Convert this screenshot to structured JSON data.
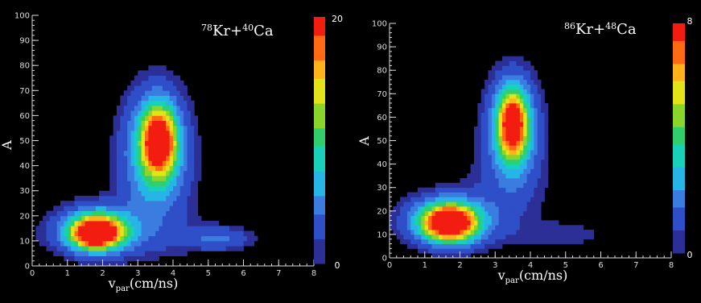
{
  "colors": {
    "background": "#000000",
    "axis": "#dcdcdc",
    "text": "#ffffff",
    "colormap": [
      "#2b2f96",
      "#2f4fc8",
      "#3a7ce0",
      "#27b4e6",
      "#19d1b9",
      "#2fcf6b",
      "#8ad52a",
      "#e3e31a",
      "#ffb21a",
      "#ff6a12",
      "#f21d10"
    ]
  },
  "chart_data": [
    {
      "type": "heatmap",
      "title": "78Kr+40Ca",
      "title_parts": {
        "mass1": "78",
        "el1": "Kr+",
        "mass2": "40",
        "el2": "Ca"
      },
      "xlabel": "v",
      "xlabel_sub": "par",
      "xlabel_unit": "(cm/ns)",
      "ylabel": "A",
      "xlim": [
        0,
        8
      ],
      "ylim": [
        0,
        100
      ],
      "xticks": [
        "0",
        "1",
        "2",
        "3",
        "4",
        "5",
        "6",
        "7",
        "8"
      ],
      "yticks": [
        "0",
        "10",
        "20",
        "30",
        "40",
        "50",
        "60",
        "70",
        "80",
        "90",
        "100"
      ],
      "colorbar": {
        "min": 0,
        "max": 20,
        "labels": [
          "20",
          "0"
        ]
      },
      "clusters": [
        {
          "x": 1.8,
          "y": 13,
          "sx": 0.45,
          "sy": 4,
          "level": 1.0
        },
        {
          "x": 1.9,
          "y": 15,
          "sx": 0.7,
          "sy": 6,
          "level": 0.5
        },
        {
          "x": 3.6,
          "y": 50,
          "sx": 0.32,
          "sy": 9,
          "level": 0.92
        },
        {
          "x": 3.5,
          "y": 48,
          "sx": 0.6,
          "sy": 15,
          "level": 0.42
        },
        {
          "x": 3.5,
          "y": 30,
          "sx": 0.7,
          "sy": 12,
          "level": 0.1
        },
        {
          "x": 5.3,
          "y": 11,
          "sx": 0.6,
          "sy": 3,
          "level": 0.18
        },
        {
          "x": 2.7,
          "y": 12,
          "sx": 1.8,
          "sy": 7,
          "level": 0.09
        }
      ]
    },
    {
      "type": "heatmap",
      "title": "86Kr+48Ca",
      "title_parts": {
        "mass1": "86",
        "el1": "Kr+",
        "mass2": "48",
        "el2": "Ca"
      },
      "xlabel": "v",
      "xlabel_sub": "par",
      "xlabel_unit": "(cm/ns)",
      "ylabel": "A",
      "xlim": [
        0,
        8
      ],
      "ylim": [
        0,
        100
      ],
      "xticks": [
        "0",
        "1",
        "2",
        "3",
        "4",
        "5",
        "6",
        "7",
        "8"
      ],
      "yticks": [
        "0",
        "10",
        "20",
        "30",
        "40",
        "50",
        "60",
        "70",
        "80",
        "90",
        "100"
      ],
      "colorbar": {
        "min": 0,
        "max": 8,
        "labels": [
          "8",
          "0"
        ]
      },
      "clusters": [
        {
          "x": 1.7,
          "y": 15,
          "sx": 0.5,
          "sy": 5,
          "level": 1.0
        },
        {
          "x": 1.7,
          "y": 16,
          "sx": 0.8,
          "sy": 7,
          "level": 0.45
        },
        {
          "x": 3.5,
          "y": 57,
          "sx": 0.28,
          "sy": 10,
          "level": 0.85
        },
        {
          "x": 3.5,
          "y": 55,
          "sx": 0.5,
          "sy": 15,
          "level": 0.38
        },
        {
          "x": 3.3,
          "y": 28,
          "sx": 0.9,
          "sy": 14,
          "level": 0.08
        },
        {
          "x": 4.9,
          "y": 10,
          "sx": 0.9,
          "sy": 4,
          "level": 0.08
        }
      ]
    }
  ]
}
